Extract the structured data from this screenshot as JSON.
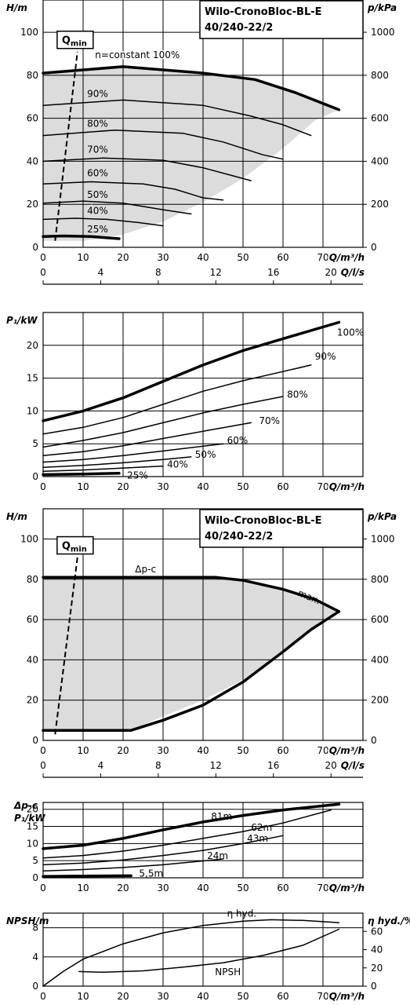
{
  "chart_data": [
    {
      "id": "head_speed",
      "type": "line",
      "title_lines": [
        "Wilo-CronoBloc-BL-E",
        "40/240-22/2"
      ],
      "ylabel": "H/m",
      "ylabel_right": "p/kPa",
      "xlabel": "Q/m³/h",
      "xlabel2": "Q/l/s",
      "xlim": [
        0,
        80
      ],
      "ylim": [
        0,
        115
      ],
      "xticks": [
        0,
        10,
        20,
        30,
        40,
        50,
        60,
        70
      ],
      "yticks": [
        0,
        20,
        40,
        60,
        80,
        100
      ],
      "rticks": [
        0,
        200,
        400,
        600,
        800,
        1000
      ],
      "x2ticks": [
        0,
        4,
        8,
        12,
        16,
        20
      ],
      "qmin_label": "Q",
      "qmin_sub": "min",
      "qmin_line": [
        [
          3,
          3
        ],
        [
          8.6,
          91
        ]
      ],
      "envelope": [
        [
          0,
          81
        ],
        [
          20,
          84
        ],
        [
          40,
          81
        ],
        [
          53,
          78
        ],
        [
          63,
          72
        ],
        [
          74,
          64
        ],
        [
          68,
          59
        ],
        [
          60,
          46
        ],
        [
          50,
          32
        ],
        [
          40,
          21
        ],
        [
          30,
          12
        ],
        [
          20,
          6
        ],
        [
          10,
          3
        ],
        [
          0,
          3
        ]
      ],
      "series": [
        {
          "name": "n=constant 100%",
          "label_at": [
            13,
            88
          ],
          "thick": true,
          "points": [
            [
              0,
              81
            ],
            [
              20,
              84
            ],
            [
              40,
              81
            ],
            [
              53,
              78
            ],
            [
              63,
              72
            ],
            [
              74,
              64
            ]
          ]
        },
        {
          "name": "90%",
          "label_at": [
            11,
            70
          ],
          "points": [
            [
              0,
              66
            ],
            [
              20,
              68.5
            ],
            [
              40,
              66
            ],
            [
              52,
              61
            ],
            [
              60,
              57
            ],
            [
              67,
              52
            ]
          ]
        },
        {
          "name": "80%",
          "label_at": [
            11,
            56
          ],
          "points": [
            [
              0,
              52
            ],
            [
              18,
              54.5
            ],
            [
              35,
              53
            ],
            [
              45,
              49
            ],
            [
              55,
              43
            ],
            [
              60,
              41
            ]
          ]
        },
        {
          "name": "70%",
          "label_at": [
            11,
            44
          ],
          "points": [
            [
              0,
              40
            ],
            [
              15,
              41.5
            ],
            [
              30,
              40.5
            ],
            [
              40,
              37
            ],
            [
              48,
              33
            ],
            [
              52,
              31
            ]
          ]
        },
        {
          "name": "60%",
          "label_at": [
            11,
            33
          ],
          "points": [
            [
              0,
              29.5
            ],
            [
              12,
              30.5
            ],
            [
              25,
              29.5
            ],
            [
              33,
              27
            ],
            [
              40,
              23
            ],
            [
              45,
              22
            ]
          ]
        },
        {
          "name": "50%",
          "label_at": [
            11,
            23
          ],
          "points": [
            [
              0,
              20.5
            ],
            [
              10,
              21.5
            ],
            [
              20,
              20.5
            ],
            [
              30,
              17.5
            ],
            [
              37,
              15.5
            ]
          ]
        },
        {
          "name": "40%",
          "label_at": [
            11,
            15.5
          ],
          "points": [
            [
              0,
              13
            ],
            [
              8,
              13.5
            ],
            [
              16,
              13
            ],
            [
              24,
              11.5
            ],
            [
              30,
              10
            ]
          ]
        },
        {
          "name": "25%",
          "label_at": [
            11,
            7
          ],
          "thick": true,
          "points": [
            [
              0,
              5
            ],
            [
              5,
              5.3
            ],
            [
              12,
              5
            ],
            [
              19,
              4
            ]
          ]
        }
      ]
    },
    {
      "id": "power_speed",
      "type": "line",
      "ylabel": "P₁/kW",
      "xlabel": "Q/m³/h",
      "xlim": [
        0,
        80
      ],
      "ylim": [
        0,
        25
      ],
      "xticks": [
        0,
        10,
        20,
        30,
        40,
        50,
        60,
        70
      ],
      "yticks": [
        0,
        5,
        10,
        15,
        20
      ],
      "series": [
        {
          "name": "100%",
          "label_at": [
            73.5,
            21.5
          ],
          "thick": true,
          "points": [
            [
              0,
              8.5
            ],
            [
              10,
              10
            ],
            [
              20,
              12
            ],
            [
              30,
              14.5
            ],
            [
              40,
              17
            ],
            [
              50,
              19.2
            ],
            [
              60,
              21
            ],
            [
              74,
              23.5
            ]
          ]
        },
        {
          "name": "90%",
          "label_at": [
            68,
            17.8
          ],
          "points": [
            [
              0,
              6.5
            ],
            [
              10,
              7.5
            ],
            [
              20,
              9
            ],
            [
              30,
              11
            ],
            [
              40,
              13
            ],
            [
              50,
              14.6
            ],
            [
              60,
              16
            ],
            [
              67,
              17
            ]
          ]
        },
        {
          "name": "80%",
          "label_at": [
            61,
            12
          ],
          "points": [
            [
              0,
              4.5
            ],
            [
              10,
              5.5
            ],
            [
              20,
              6.7
            ],
            [
              30,
              8.2
            ],
            [
              40,
              9.7
            ],
            [
              50,
              11
            ],
            [
              60,
              12.2
            ]
          ]
        },
        {
          "name": "70%",
          "label_at": [
            54,
            8
          ],
          "points": [
            [
              0,
              3.2
            ],
            [
              10,
              3.8
            ],
            [
              20,
              4.7
            ],
            [
              30,
              5.8
            ],
            [
              40,
              6.9
            ],
            [
              52,
              8.2
            ]
          ]
        },
        {
          "name": "60%",
          "label_at": [
            46,
            5
          ],
          "points": [
            [
              0,
              2.2
            ],
            [
              10,
              2.6
            ],
            [
              20,
              3.2
            ],
            [
              30,
              3.9
            ],
            [
              45,
              5
            ]
          ]
        },
        {
          "name": "50%",
          "label_at": [
            38,
            2.9
          ],
          "points": [
            [
              0,
              1.4
            ],
            [
              10,
              1.7
            ],
            [
              20,
              2.1
            ],
            [
              30,
              2.6
            ],
            [
              37,
              3
            ]
          ]
        },
        {
          "name": "40%",
          "label_at": [
            31,
            1.4
          ],
          "points": [
            [
              0,
              0.8
            ],
            [
              10,
              1
            ],
            [
              20,
              1.3
            ],
            [
              30,
              1.6
            ]
          ]
        },
        {
          "name": "25%",
          "label_at": [
            21,
            -0.3
          ],
          "thick": true,
          "points": [
            [
              0,
              0.3
            ],
            [
              10,
              0.4
            ],
            [
              19,
              0.5
            ]
          ]
        }
      ]
    },
    {
      "id": "head_dpc",
      "type": "line",
      "title_lines": [
        "Wilo-CronoBloc-BL-E",
        "40/240-22/2"
      ],
      "ylabel": "H/m",
      "ylabel_right": "p/kPa",
      "xlabel": "Q/m³/h",
      "xlabel2": "Q/l/s",
      "xlim": [
        0,
        80
      ],
      "ylim": [
        0,
        115
      ],
      "xticks": [
        0,
        10,
        20,
        30,
        40,
        50,
        60,
        70
      ],
      "yticks": [
        0,
        20,
        40,
        60,
        80,
        100
      ],
      "rticks": [
        0,
        200,
        400,
        600,
        800,
        1000
      ],
      "x2ticks": [
        0,
        4,
        8,
        12,
        16,
        20
      ],
      "qmin_label": "Q",
      "qmin_sub": "min",
      "qmin_line": [
        [
          3,
          3
        ],
        [
          8.6,
          91
        ]
      ],
      "envelope": [
        [
          0,
          81
        ],
        [
          43,
          81
        ],
        [
          50,
          79.5
        ],
        [
          60,
          75
        ],
        [
          68,
          70
        ],
        [
          74,
          64
        ],
        [
          60,
          44
        ],
        [
          50,
          30
        ],
        [
          40,
          20
        ],
        [
          30,
          12
        ],
        [
          22,
          5
        ],
        [
          0,
          5
        ]
      ],
      "annotations": [
        {
          "text": "Δp-c",
          "at": [
            23,
            83.5
          ]
        },
        {
          "text": "max.",
          "at": [
            63.5,
            72
          ],
          "rotate": 22
        }
      ],
      "series": [
        {
          "name": "Δp-c",
          "thick": true,
          "points": [
            [
              0,
              81
            ],
            [
              43,
              81
            ],
            [
              50,
              79.5
            ],
            [
              60,
              75
            ],
            [
              68,
              70
            ],
            [
              74,
              64
            ]
          ]
        },
        {
          "name": "max.",
          "thick": true,
          "points": [
            [
              0,
              5
            ],
            [
              22,
              5
            ],
            [
              30,
              10
            ],
            [
              40,
              17.5
            ],
            [
              50,
              29
            ],
            [
              60,
              44
            ],
            [
              67,
              55
            ],
            [
              74,
              64
            ]
          ]
        }
      ]
    },
    {
      "id": "power_dpc",
      "type": "line",
      "ylabel_lines": [
        "Δp-c",
        "P₁/kW"
      ],
      "xlabel": "Q/m³/h",
      "xlim": [
        0,
        80
      ],
      "ylim": [
        0,
        22
      ],
      "xticks": [
        0,
        10,
        20,
        30,
        40,
        50,
        60,
        70
      ],
      "yticks": [
        0,
        5,
        10,
        15,
        20
      ],
      "series": [
        {
          "name": "81m",
          "label_at": [
            42,
            17
          ],
          "thick": true,
          "points": [
            [
              0,
              8.5
            ],
            [
              10,
              9.5
            ],
            [
              20,
              11.5
            ],
            [
              30,
              14
            ],
            [
              40,
              16.3
            ],
            [
              50,
              18.2
            ],
            [
              60,
              19.8
            ],
            [
              74,
              21.5
            ]
          ]
        },
        {
          "name": "62m",
          "label_at": [
            52,
            13.8
          ],
          "points": [
            [
              0,
              5.8
            ],
            [
              10,
              6.5
            ],
            [
              20,
              7.8
            ],
            [
              30,
              9.5
            ],
            [
              40,
              11.5
            ],
            [
              50,
              13.5
            ],
            [
              60,
              16
            ],
            [
              72,
              19.8
            ]
          ]
        },
        {
          "name": "43m",
          "label_at": [
            51,
            10.5
          ],
          "points": [
            [
              0,
              3.8
            ],
            [
              10,
              4.3
            ],
            [
              20,
              5.2
            ],
            [
              30,
              6.5
            ],
            [
              40,
              8
            ],
            [
              50,
              10
            ],
            [
              60,
              12.3
            ]
          ]
        },
        {
          "name": "24m",
          "label_at": [
            41,
            5.5
          ],
          "points": [
            [
              0,
              2
            ],
            [
              10,
              2.4
            ],
            [
              20,
              3
            ],
            [
              30,
              3.8
            ],
            [
              45,
              5.5
            ]
          ]
        },
        {
          "name": "5,5m",
          "label_at": [
            24,
            0.3
          ],
          "thick": true,
          "points": [
            [
              0,
              0.4
            ],
            [
              10,
              0.5
            ],
            [
              22,
              0.6
            ]
          ]
        }
      ]
    },
    {
      "id": "npsh_eff",
      "type": "line",
      "ylabel": "NPSH/m",
      "ylabel_right": "η hyd./%",
      "xlabel": "Q/m³/h",
      "xlim": [
        0,
        80
      ],
      "ylim": [
        0,
        10
      ],
      "xticks": [
        0,
        10,
        20,
        30,
        40,
        50,
        60,
        70
      ],
      "yticks": [
        0,
        4,
        8
      ],
      "rticks": [
        0,
        20,
        40,
        60
      ],
      "series": [
        {
          "name": "η hyd.",
          "label_at": [
            46,
            9.5
          ],
          "points": [
            [
              0,
              0
            ],
            [
              5,
              2
            ],
            [
              10,
              3.7
            ],
            [
              20,
              5.8
            ],
            [
              30,
              7.3
            ],
            [
              40,
              8.3
            ],
            [
              50,
              8.9
            ],
            [
              57,
              9.1
            ],
            [
              65,
              9
            ],
            [
              74,
              8.7
            ]
          ]
        },
        {
          "name": "NPSH",
          "label_at": [
            43,
            1.5
          ],
          "points": [
            [
              9,
              2
            ],
            [
              15,
              1.9
            ],
            [
              25,
              2.1
            ],
            [
              35,
              2.6
            ],
            [
              45,
              3.2
            ],
            [
              55,
              4.2
            ],
            [
              65,
              5.6
            ],
            [
              74,
              7.8
            ]
          ]
        }
      ]
    }
  ]
}
